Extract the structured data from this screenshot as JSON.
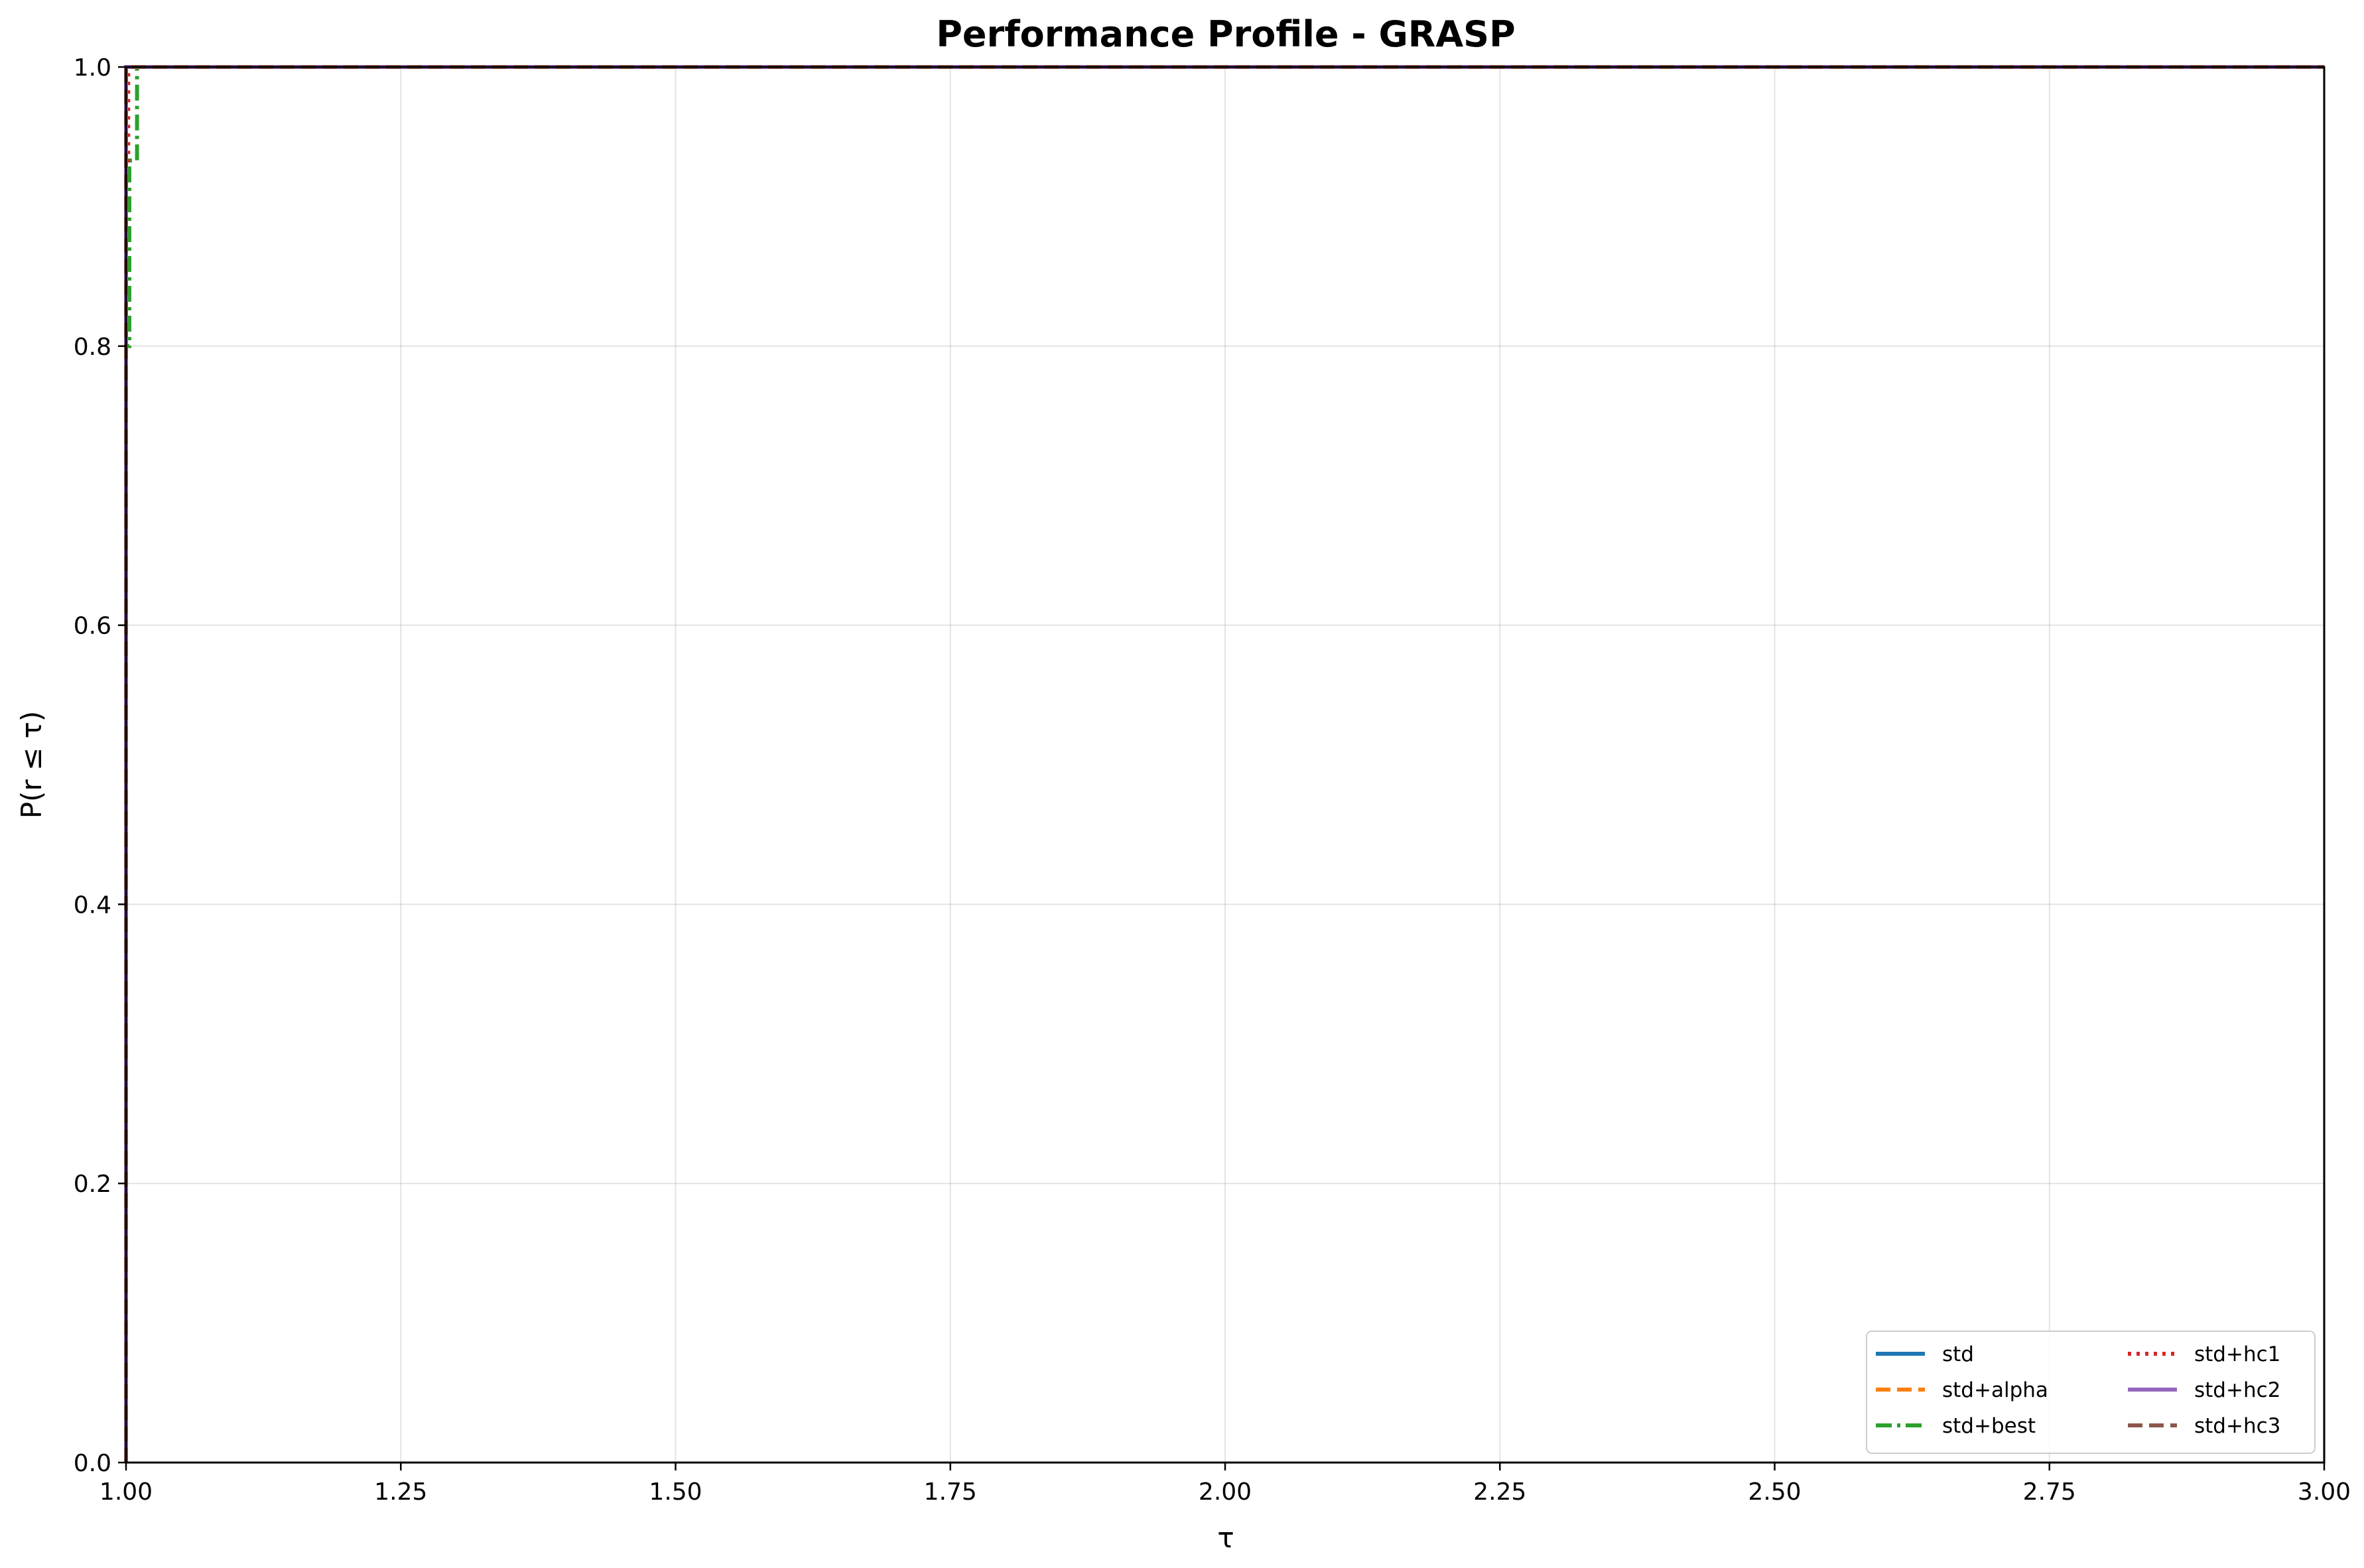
{
  "chart_data": {
    "type": "line",
    "title": "Performance Profile - GRASP",
    "xlabel": "τ",
    "ylabel": "P(r ≤ τ)",
    "xlim": [
      1.0,
      3.0
    ],
    "ylim": [
      0.0,
      1.0
    ],
    "xticks": [
      "1.00",
      "1.25",
      "1.50",
      "1.75",
      "2.00",
      "2.25",
      "2.50",
      "2.75",
      "3.00"
    ],
    "yticks": [
      "0.0",
      "0.2",
      "0.4",
      "0.6",
      "0.8",
      "1.0"
    ],
    "grid": true,
    "legend_position": "lower right",
    "legend_columns": 2,
    "series": [
      {
        "name": "std",
        "color": "#1f77b4",
        "style": "solid",
        "x": [
          1.0,
          1.0,
          3.0
        ],
        "y": [
          0.0,
          1.0,
          1.0
        ]
      },
      {
        "name": "std+alpha",
        "color": "#ff7f0e",
        "style": "dashed",
        "x": [
          1.0,
          1.0,
          3.0
        ],
        "y": [
          0.0,
          1.0,
          1.0
        ]
      },
      {
        "name": "std+best",
        "color": "#2ca02c",
        "style": "dashdot",
        "x": [
          1.0,
          1.0,
          1.003,
          1.003,
          1.005,
          1.005,
          1.01,
          1.01,
          3.0
        ],
        "y": [
          0.0,
          0.8,
          0.8,
          0.933,
          0.933,
          0.933,
          0.933,
          1.0,
          1.0
        ]
      },
      {
        "name": "std+hc1",
        "color": "#d62728",
        "style": "dotted",
        "x": [
          1.0,
          1.0,
          1.002,
          1.002,
          3.0
        ],
        "y": [
          0.0,
          0.933,
          0.933,
          1.0,
          1.0
        ]
      },
      {
        "name": "std+hc2",
        "color": "#9467bd",
        "style": "solid",
        "x": [
          1.0,
          1.0,
          3.0
        ],
        "y": [
          0.0,
          1.0,
          1.0
        ]
      },
      {
        "name": "std+hc3",
        "color": "#8c564b",
        "style": "dashed",
        "x": [
          1.0,
          1.0,
          3.0
        ],
        "y": [
          0.0,
          1.0,
          1.0
        ]
      }
    ]
  }
}
